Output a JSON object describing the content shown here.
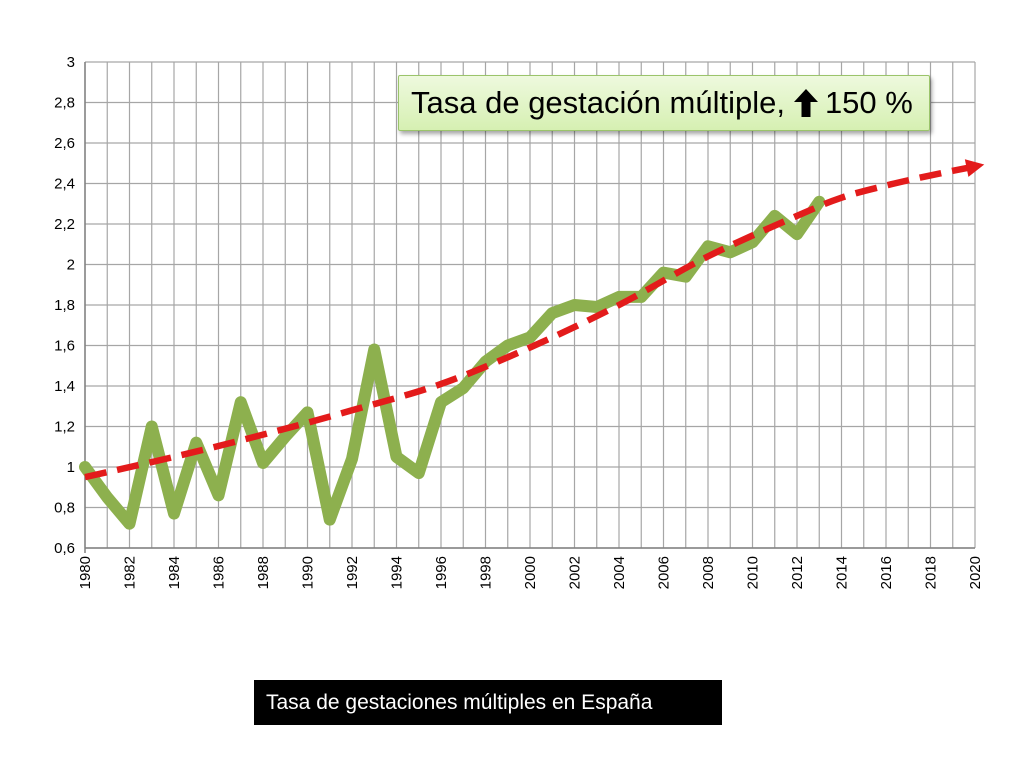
{
  "chart_data": {
    "type": "line",
    "title": "",
    "xlabel": "",
    "ylabel": "",
    "xlim": [
      1980,
      2020
    ],
    "ylim": [
      0.6,
      3.0
    ],
    "x_ticks": [
      "1980",
      "1982",
      "1984",
      "1986",
      "1988",
      "1990",
      "1992",
      "1994",
      "1996",
      "1998",
      "2000",
      "2002",
      "2004",
      "2006",
      "2008",
      "2010",
      "2012",
      "2014",
      "2016",
      "2018",
      "2020"
    ],
    "y_ticks": [
      "0,6",
      "0,8",
      "1",
      "1,2",
      "1,4",
      "1,6",
      "1,8",
      "2",
      "2,2",
      "2,4",
      "2,6",
      "2,8",
      "3"
    ],
    "grid": true,
    "series": [
      {
        "x": [
          1980,
          1981,
          1982,
          1983,
          1984,
          1985,
          1986,
          1987,
          1988,
          1989,
          1990,
          1991,
          1992,
          1993,
          1994,
          1995,
          1996,
          1997,
          1998,
          1999,
          2000,
          2001,
          2002,
          2003,
          2004,
          2005,
          2006,
          2007,
          2008,
          2009,
          2010,
          2011,
          2012,
          2013
        ],
        "values": [
          1.0,
          0.85,
          0.72,
          1.2,
          0.77,
          1.12,
          0.86,
          1.32,
          1.02,
          1.15,
          1.27,
          0.74,
          1.04,
          1.58,
          1.05,
          0.97,
          1.32,
          1.39,
          1.52,
          1.6,
          1.64,
          1.76,
          1.8,
          1.79,
          1.84,
          1.84,
          1.96,
          1.94,
          2.09,
          2.06,
          2.11,
          2.24,
          2.15,
          2.31
        ]
      }
    ],
    "trend": {
      "x": [
        1980,
        1984,
        1988,
        1992,
        1996,
        2000,
        2004,
        2008,
        2012,
        2014,
        2016,
        2018,
        2019.8
      ],
      "values": [
        0.95,
        1.05,
        1.16,
        1.28,
        1.41,
        1.59,
        1.8,
        2.04,
        2.24,
        2.33,
        2.39,
        2.44,
        2.48
      ]
    },
    "colors": {
      "series": "#8db04e",
      "trend": "#e31b1b",
      "grid": "#a6a6a6"
    }
  },
  "annotation": {
    "text_before": "Tasa de gestación múltiple,",
    "arrow_icon": "up-arrow-icon",
    "text_after": "150 %"
  },
  "caption": "Tasa de gestaciones múltiples en España"
}
